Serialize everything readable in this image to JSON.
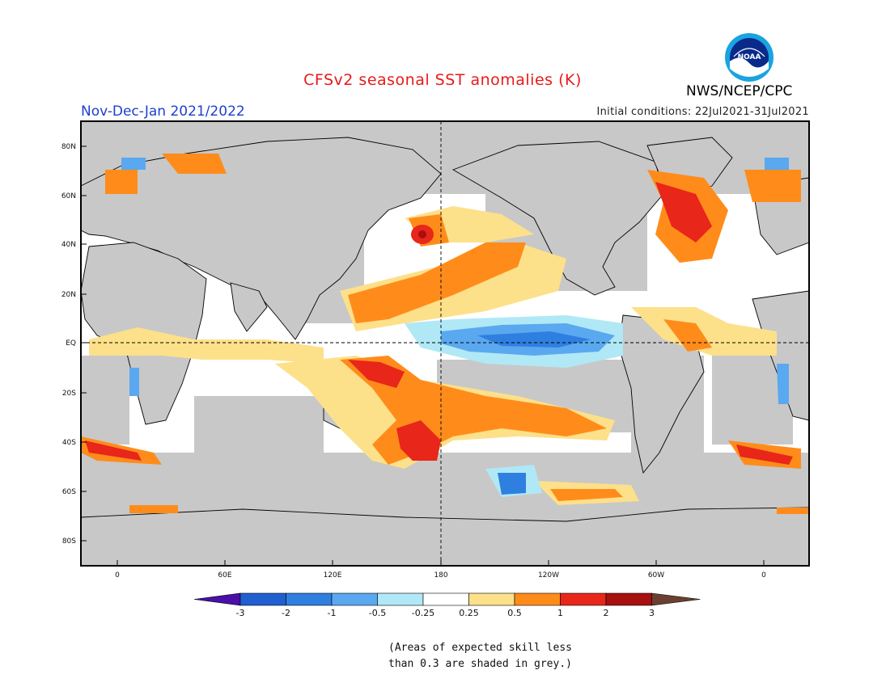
{
  "header": {
    "title": "CFSv2 seasonal SST anomalies (K)",
    "period": "Nov-Dec-Jan 2021/2022",
    "initial_conditions": "Initial conditions: 22Jul2021-31Jul2021",
    "agency": "NWS/NCEP/CPC",
    "logo_text": "NOAA"
  },
  "map": {
    "lat_labels": [
      "80N",
      "60N",
      "40N",
      "20N",
      "EQ",
      "20S",
      "40S",
      "60S",
      "80S"
    ],
    "lon_labels": [
      "0",
      "60E",
      "120E",
      "180",
      "120W",
      "60W",
      "0"
    ],
    "land_color": "#c8c8c8",
    "skill_mask_color": "#c8c8c8"
  },
  "colorbar": {
    "labels": [
      "-3",
      "-2",
      "-1",
      "-0.5",
      "-0.25",
      "0.25",
      "0.5",
      "1",
      "2",
      "3"
    ],
    "colors": [
      "#4b10a8",
      "#1f5fd0",
      "#2f7fe0",
      "#5aa8f0",
      "#b0e8f6",
      "#ffffff",
      "#fde08a",
      "#ff8c1a",
      "#e8261a",
      "#a80f0f",
      "#6b4030"
    ]
  },
  "footnote": {
    "line1": "(Areas of expected skill less",
    "line2": "than 0.3 are shaded in grey.)"
  }
}
